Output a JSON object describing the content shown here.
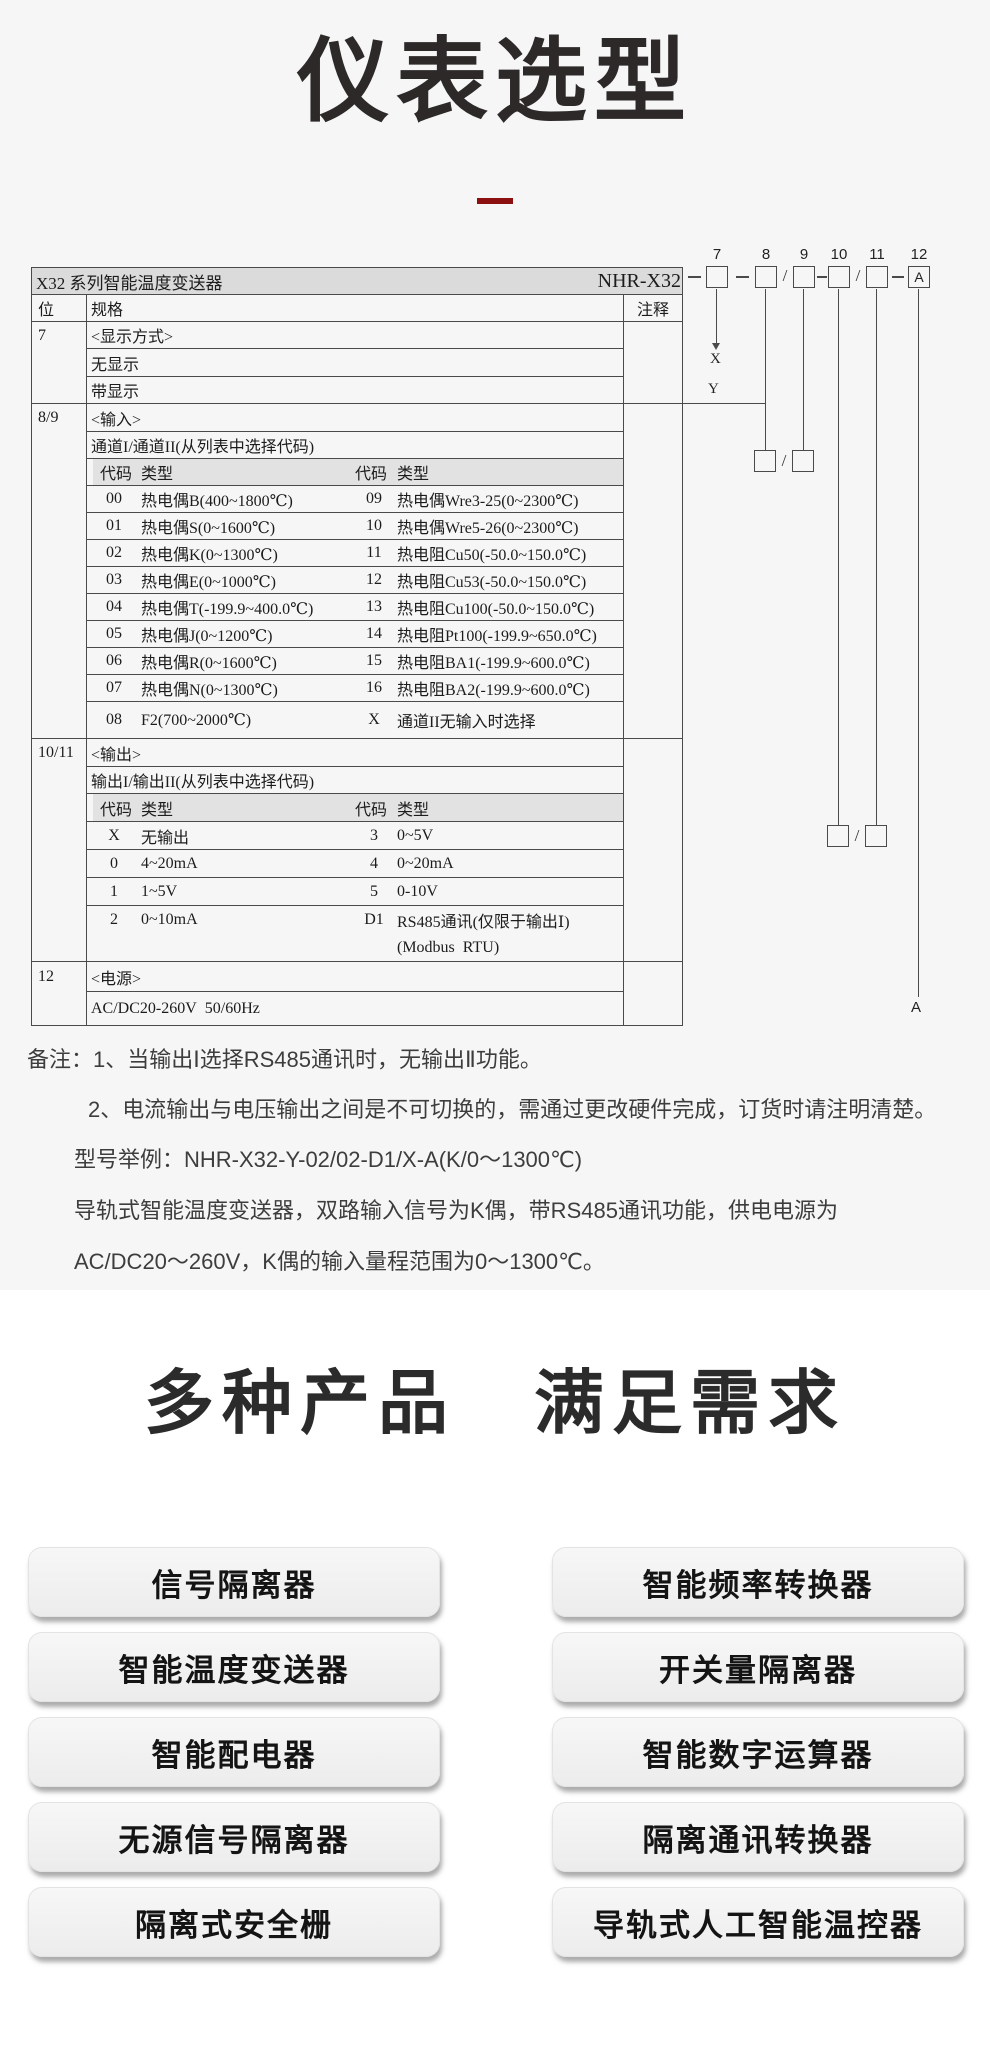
{
  "title": "仪表选型",
  "colors": {
    "accent_red": "#8d1011",
    "title_color": "#2d2929",
    "table_line": "#4a4a4a",
    "series_bar": "#dbdbdb",
    "code_header_bar": "#e2e2e2",
    "page_top_bg": "#f6f6f6",
    "page_bottom_bg": "#ffffff"
  },
  "diagram": {
    "prefix": "NHR-X32",
    "digits": [
      "7",
      "8",
      "9",
      "10",
      "11",
      "12"
    ],
    "slash": "/",
    "fixed_code": "A",
    "display_code_x": "X",
    "display_code_y": "Y"
  },
  "table": {
    "series_title": "X32 系列智能温度变送器",
    "headers": {
      "bit": "位",
      "spec": "规格",
      "note": "注释"
    },
    "code_header": {
      "code": "代码",
      "type": "类型"
    },
    "display": {
      "bit": "7",
      "label": "<显示方式>",
      "opt1": "无显示",
      "opt2": "带显示"
    },
    "input": {
      "bit": "8/9",
      "label": "<输入>",
      "sub": "通道I/通道II(从列表中选择代码)",
      "rows": [
        {
          "c1": "00",
          "t1": "热电偶B(400~1800℃)",
          "c2": "09",
          "t2": "热电偶Wre3-25(0~2300℃)"
        },
        {
          "c1": "01",
          "t1": "热电偶S(0~1600℃)",
          "c2": "10",
          "t2": "热电偶Wre5-26(0~2300℃)"
        },
        {
          "c1": "02",
          "t1": "热电偶K(0~1300℃)",
          "c2": "11",
          "t2": "热电阻Cu50(-50.0~150.0℃)"
        },
        {
          "c1": "03",
          "t1": "热电偶E(0~1000℃)",
          "c2": "12",
          "t2": "热电阻Cu53(-50.0~150.0℃)"
        },
        {
          "c1": "04",
          "t1": "热电偶T(-199.9~400.0℃)",
          "c2": "13",
          "t2": "热电阻Cu100(-50.0~150.0℃)"
        },
        {
          "c1": "05",
          "t1": "热电偶J(0~1200℃)",
          "c2": "14",
          "t2": "热电阻Pt100(-199.9~650.0℃)"
        },
        {
          "c1": "06",
          "t1": "热电偶R(0~1600℃)",
          "c2": "15",
          "t2": "热电阻BA1(-199.9~600.0℃)"
        },
        {
          "c1": "07",
          "t1": "热电偶N(0~1300℃)",
          "c2": "16",
          "t2": "热电阻BA2(-199.9~600.0℃)"
        },
        {
          "c1": "08",
          "t1": "F2(700~2000℃)",
          "c2": "X",
          "t2": "通道II无输入时选择"
        }
      ]
    },
    "output": {
      "bit": "10/11",
      "label": "<输出>",
      "sub": "输出I/输出II(从列表中选择代码)",
      "rows": [
        {
          "c1": "X",
          "t1": "无输出",
          "c2": "3",
          "t2": "0~5V"
        },
        {
          "c1": "0",
          "t1": "4~20mA",
          "c2": "4",
          "t2": "0~20mA"
        },
        {
          "c1": "1",
          "t1": "1~5V",
          "c2": "5",
          "t2": "0-10V"
        },
        {
          "c1": "2",
          "t1": "0~10mA",
          "c2": "D1",
          "t2": "RS485通讯(仅限于输出Ⅰ)"
        }
      ],
      "modbus": "(Modbus  RTU)"
    },
    "power": {
      "bit": "12",
      "label": "<电源>",
      "value": "AC/DC20-260V  50/60Hz"
    }
  },
  "notes": {
    "label": "备注：",
    "line1": "1、当输出Ⅰ选择RS485通讯时，无输出Ⅱ功能。",
    "line2": "2、电流输出与电压输出之间是不可切换的，需通过更改硬件完成，订货时请注明清楚。",
    "line3": "型号举例：NHR-X32-Y-02/02-D1/X-A(K/0～1300℃)",
    "line4": "导轨式智能温度变送器，双路输入信号为K偶，带RS485通讯功能，供电电源为",
    "line5": "AC/DC20～260V，K偶的输入量程范围为0～1300℃。"
  },
  "products": {
    "heading_left": "多种产品",
    "heading_right": "满足需求",
    "left": [
      "信号隔离器",
      "智能温度变送器",
      "智能配电器",
      "无源信号隔离器",
      "隔离式安全栅"
    ],
    "right": [
      "智能频率转换器",
      "开关量隔离器",
      "智能数字运算器",
      "隔离通讯转换器",
      "导轨式人工智能温控器"
    ]
  }
}
